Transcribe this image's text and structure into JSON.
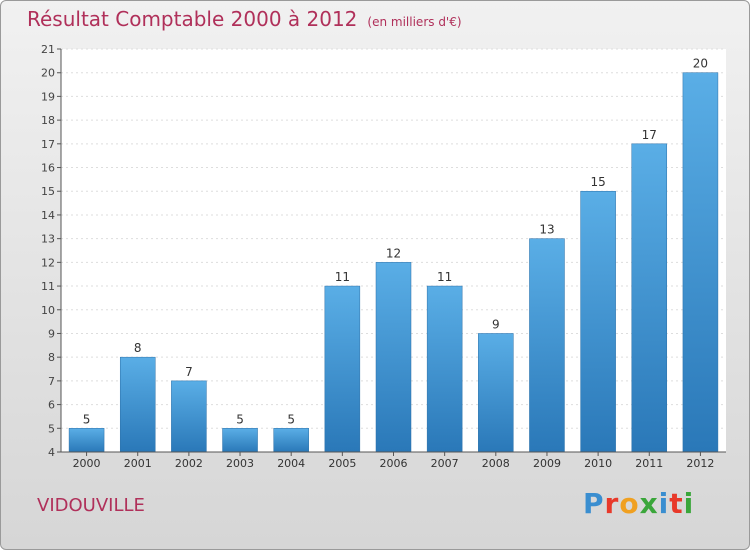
{
  "chart_data": {
    "type": "bar",
    "title": "Résultat Comptable 2000 à 2012",
    "subtitle": "(en milliers d'€)",
    "categories": [
      "2000",
      "2001",
      "2002",
      "2003",
      "2004",
      "2005",
      "2006",
      "2007",
      "2008",
      "2009",
      "2010",
      "2011",
      "2012"
    ],
    "values": [
      5,
      8,
      7,
      5,
      5,
      11,
      12,
      11,
      9,
      13,
      15,
      17,
      20
    ],
    "ylim": [
      4,
      21
    ],
    "yticks": [
      4,
      5,
      6,
      7,
      8,
      9,
      10,
      11,
      12,
      13,
      14,
      15,
      16,
      17,
      18,
      19,
      20,
      21
    ],
    "xlabel": "",
    "ylabel": "",
    "grid": true,
    "colors": {
      "bar_top": "#5aaee6",
      "bar_bottom": "#2a78b8",
      "title": "#b0305a"
    }
  },
  "commune": "VIDOUVILLE",
  "logo": {
    "letters": [
      "P",
      "r",
      "o",
      "x",
      "i",
      "t",
      "i"
    ],
    "colors": [
      "#3a8ed0",
      "#e8392a",
      "#f0a020",
      "#3aa63a",
      "#3a8ed0",
      "#e8392a",
      "#3aa63a"
    ]
  }
}
